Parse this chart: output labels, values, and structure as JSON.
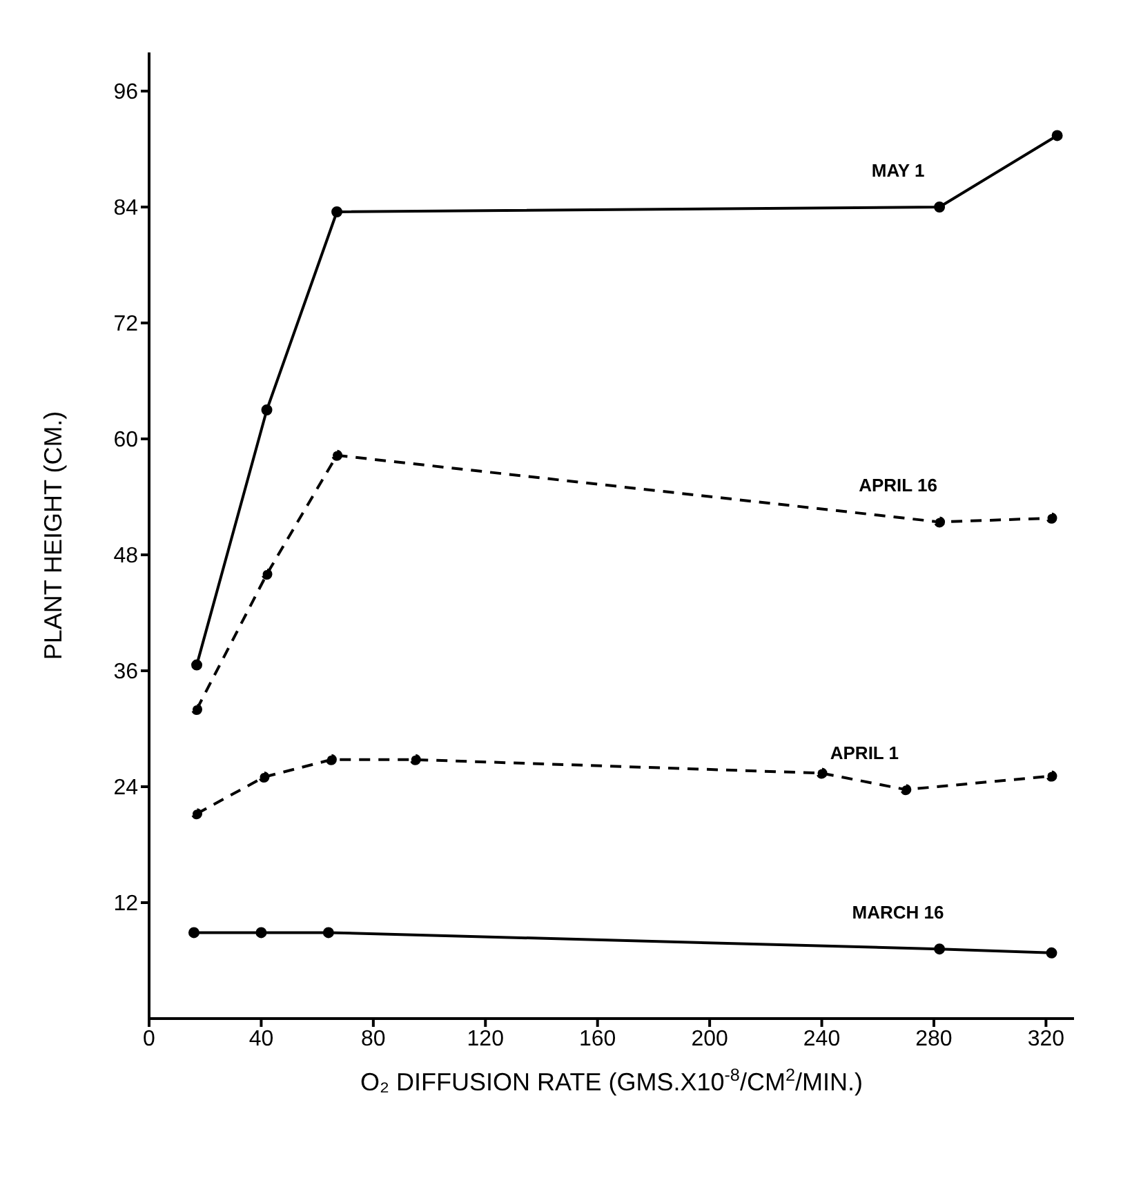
{
  "chart_data": {
    "type": "line",
    "xlabel": "O₂ DIFFUSION RATE (GMS.X10$^{-8}$/CM$^{2}$/MIN.)",
    "ylabel": "PLANT HEIGHT (CM.)",
    "xlim": [
      0,
      330
    ],
    "xticks": [
      0,
      40,
      80,
      120,
      160,
      200,
      240,
      280,
      320
    ],
    "ylim": [
      0,
      100
    ],
    "yticks": [
      12,
      24,
      36,
      48,
      60,
      72,
      84,
      96
    ],
    "marker": "circle",
    "series": [
      {
        "name": "MAY 1",
        "color": "#000000",
        "line_style": "solid",
        "x": [
          17,
          42,
          67,
          282,
          324
        ],
        "values": [
          36.6,
          63,
          83.5,
          84,
          91.4
        ]
      },
      {
        "name": "APRIL 16",
        "color": "#000000",
        "line_style": "dashed",
        "x": [
          17,
          42,
          67,
          282,
          322
        ],
        "values": [
          32,
          46,
          58.3,
          51.4,
          51.8
        ]
      },
      {
        "name": "APRIL 1",
        "color": "#000000",
        "line_style": "dashed",
        "x": [
          17,
          41,
          65,
          95,
          240,
          270,
          322
        ],
        "values": [
          21.2,
          25,
          26.8,
          26.8,
          25.4,
          23.7,
          25.1
        ]
      },
      {
        "name": "MARCH 16",
        "color": "#000000",
        "line_style": "solid",
        "x": [
          16,
          40,
          64,
          282,
          322
        ],
        "values": [
          8.9,
          8.9,
          8.9,
          7.2,
          6.8
        ]
      }
    ]
  }
}
